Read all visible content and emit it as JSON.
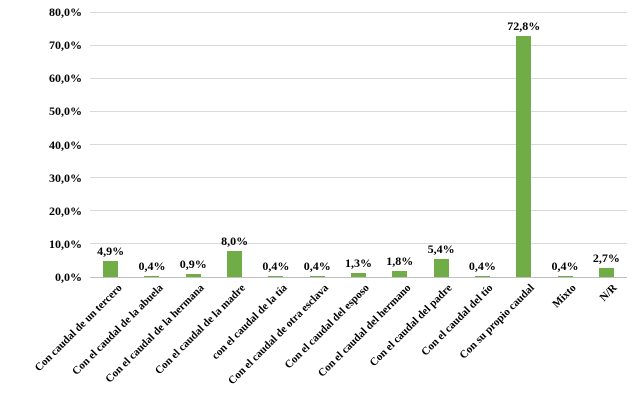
{
  "chart_data": {
    "type": "bar",
    "title": "",
    "xlabel": "",
    "ylabel": "",
    "categories": [
      "Con caudal de un tercero",
      "Con el caudal de la abuela",
      "Con el caudal de la hermana",
      "Con el caudal de la madre",
      "con el caudal de la tía",
      "Con el caudal de otra esclava",
      "Con el caudal del esposo",
      "Con el caudal del hermano",
      "Con el caudal del padre",
      "Con el caudal del tío",
      "Con su propio caudal",
      "Mixto",
      "N/R"
    ],
    "values": [
      4.9,
      0.4,
      0.9,
      8.0,
      0.4,
      0.4,
      1.3,
      1.8,
      5.4,
      0.4,
      72.8,
      0.4,
      2.7
    ],
    "data_labels": [
      "4,9%",
      "0,4%",
      "0,9%",
      "8,0%",
      "0,4%",
      "0,4%",
      "1,3%",
      "1,8%",
      "5,4%",
      "0,4%",
      "72,8%",
      "0,4%",
      "2,7%"
    ],
    "y_ticks": [
      "0,0%",
      "10,0%",
      "20,0%",
      "30,0%",
      "40,0%",
      "50,0%",
      "60,0%",
      "70,0%",
      "80,0%"
    ],
    "y_tick_values": [
      0,
      10,
      20,
      30,
      40,
      50,
      60,
      70,
      80
    ],
    "ylim": [
      0,
      80
    ],
    "grid": true,
    "legend": "none",
    "colors": {
      "bar": "#70AD47",
      "gridline": "#D9D9D9",
      "axis_line": "#BFBFBF",
      "text": "#000000",
      "background": "#FFFFFF"
    }
  }
}
